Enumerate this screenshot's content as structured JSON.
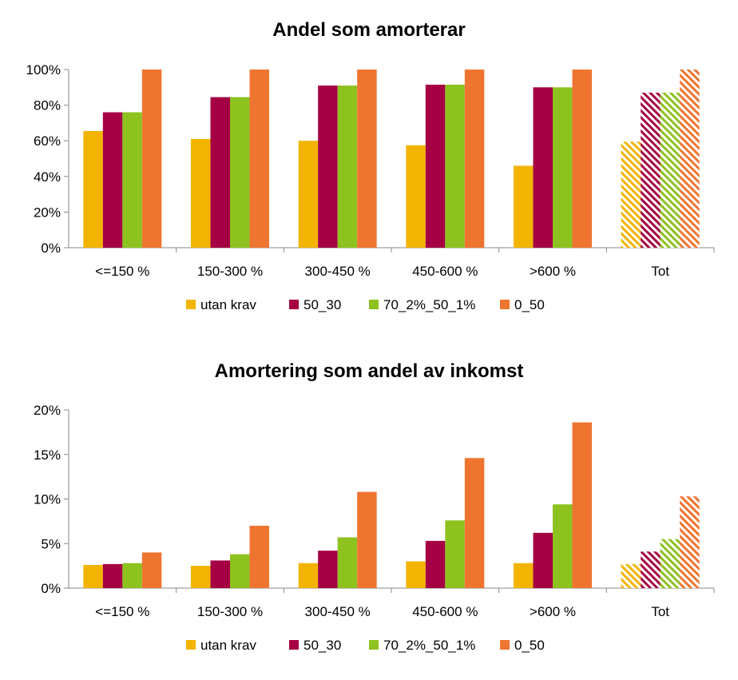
{
  "chart_data": [
    {
      "type": "bar",
      "title": "Andel som amorterar",
      "categories": [
        "<=150 %",
        "150-300 %",
        "300-450 %",
        "450-600 %",
        ">600 %",
        "Tot"
      ],
      "series": [
        {
          "name": "utan krav",
          "color": "#F2B400",
          "values": [
            65.5,
            61,
            60,
            57.5,
            46,
            59.5
          ]
        },
        {
          "name": "50_30",
          "color": "#A50043",
          "values": [
            76,
            84.5,
            91,
            91.5,
            90,
            87
          ]
        },
        {
          "name": "70_2%_50_1%",
          "color": "#8DC21F",
          "values": [
            76,
            84.5,
            91,
            91.5,
            90,
            87
          ]
        },
        {
          "name": "0_50",
          "color": "#EE7530",
          "values": [
            100,
            100,
            100,
            100,
            100,
            100
          ]
        }
      ],
      "hatched_categories": [
        "Tot"
      ],
      "ylim": [
        0,
        100
      ],
      "yticks": [
        "0%",
        "20%",
        "40%",
        "60%",
        "80%",
        "100%"
      ],
      "ytick_values": [
        0,
        20,
        40,
        60,
        80,
        100
      ],
      "grid": false,
      "legend": "bottom"
    },
    {
      "type": "bar",
      "title": "Amortering som andel av inkomst",
      "categories": [
        "<=150 %",
        "150-300 %",
        "300-450 %",
        "450-600 %",
        ">600 %",
        "Tot"
      ],
      "series": [
        {
          "name": "utan krav",
          "color": "#F2B400",
          "values": [
            2.6,
            2.5,
            2.8,
            3.0,
            2.8,
            2.7
          ]
        },
        {
          "name": "50_30",
          "color": "#A50043",
          "values": [
            2.7,
            3.1,
            4.2,
            5.3,
            6.2,
            4.1
          ]
        },
        {
          "name": "70_2%_50_1%",
          "color": "#8DC21F",
          "values": [
            2.8,
            3.8,
            5.7,
            7.6,
            9.4,
            5.5
          ]
        },
        {
          "name": "0_50",
          "color": "#EE7530",
          "values": [
            4.0,
            7.0,
            10.8,
            14.6,
            18.6,
            10.3
          ]
        }
      ],
      "hatched_categories": [
        "Tot"
      ],
      "ylim": [
        0,
        20
      ],
      "yticks": [
        "0%",
        "5%",
        "10%",
        "15%",
        "20%"
      ],
      "ytick_values": [
        0,
        5,
        10,
        15,
        20
      ],
      "grid": false,
      "legend": "bottom"
    }
  ]
}
